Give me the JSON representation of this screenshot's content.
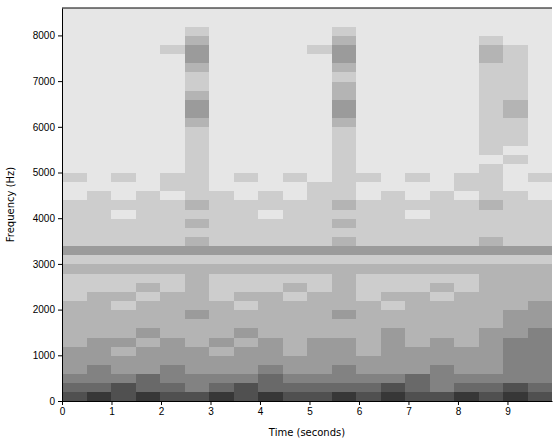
{
  "chart_data": {
    "type": "heatmap",
    "xlabel": "Time (seconds)",
    "ylabel": "Frequency (Hz)",
    "xlim": [
      0,
      9.9
    ],
    "ylim": [
      0,
      8600
    ],
    "xticks": [
      0,
      1,
      2,
      3,
      4,
      5,
      6,
      7,
      8,
      9
    ],
    "yticks": [
      0,
      1000,
      2000,
      3000,
      4000,
      5000,
      6000,
      7000,
      8000
    ],
    "x_edges": [
      0,
      0.495,
      0.99,
      1.485,
      1.98,
      2.475,
      2.97,
      3.465,
      3.96,
      4.455,
      4.95,
      5.445,
      5.94,
      6.435,
      6.93,
      7.425,
      7.92,
      8.415,
      8.91,
      9.405,
      9.9
    ],
    "y_edges": [
      0,
      200,
      400,
      600,
      800,
      1000,
      1200,
      1400,
      1600,
      1800,
      2000,
      2200,
      2400,
      2600,
      2800,
      3000,
      3200,
      3400,
      3600,
      3800,
      4000,
      4200,
      4400,
      4600,
      4800,
      5000,
      5200,
      5400,
      5600,
      5800,
      6000,
      6200,
      6400,
      6600,
      6800,
      7000,
      7200,
      7400,
      7600,
      7800,
      8000,
      8200,
      8400,
      8600
    ],
    "clim": [
      0,
      9
    ],
    "cells": [
      [
        7,
        8,
        7,
        8,
        7,
        7,
        8,
        7,
        8,
        7,
        7,
        8,
        7,
        8,
        7,
        7,
        8,
        7,
        8,
        7
      ],
      [
        6,
        6,
        7,
        6,
        6,
        5,
        6,
        7,
        6,
        6,
        6,
        6,
        6,
        7,
        6,
        5,
        6,
        6,
        7,
        6
      ],
      [
        5,
        5,
        5,
        6,
        5,
        5,
        5,
        5,
        6,
        5,
        5,
        5,
        5,
        5,
        6,
        5,
        5,
        5,
        5,
        5
      ],
      [
        4,
        5,
        4,
        4,
        5,
        4,
        4,
        4,
        5,
        4,
        4,
        5,
        4,
        4,
        4,
        5,
        4,
        4,
        5,
        5
      ],
      [
        4,
        4,
        4,
        4,
        4,
        4,
        4,
        4,
        4,
        4,
        4,
        4,
        4,
        4,
        4,
        4,
        4,
        4,
        5,
        5
      ],
      [
        4,
        4,
        3,
        4,
        4,
        4,
        3,
        4,
        4,
        3,
        4,
        4,
        3,
        4,
        4,
        4,
        4,
        4,
        5,
        5
      ],
      [
        3,
        4,
        4,
        3,
        4,
        3,
        4,
        3,
        4,
        3,
        4,
        4,
        3,
        4,
        3,
        4,
        3,
        4,
        5,
        5
      ],
      [
        3,
        3,
        3,
        4,
        3,
        3,
        3,
        4,
        3,
        3,
        3,
        3,
        3,
        4,
        3,
        3,
        3,
        4,
        4,
        5
      ],
      [
        3,
        3,
        3,
        3,
        3,
        3,
        3,
        3,
        3,
        3,
        3,
        3,
        3,
        3,
        3,
        3,
        3,
        3,
        4,
        4
      ],
      [
        3,
        3,
        3,
        3,
        3,
        4,
        3,
        3,
        3,
        3,
        3,
        4,
        3,
        3,
        3,
        3,
        3,
        3,
        4,
        4
      ],
      [
        3,
        3,
        2,
        3,
        3,
        3,
        3,
        2,
        3,
        3,
        3,
        3,
        3,
        2,
        3,
        3,
        3,
        3,
        3,
        4
      ],
      [
        2,
        3,
        3,
        2,
        3,
        3,
        2,
        3,
        3,
        2,
        3,
        3,
        2,
        3,
        3,
        2,
        3,
        3,
        3,
        3
      ],
      [
        2,
        2,
        2,
        3,
        2,
        3,
        2,
        2,
        2,
        3,
        2,
        3,
        2,
        2,
        2,
        3,
        2,
        3,
        3,
        3
      ],
      [
        2,
        2,
        2,
        2,
        2,
        3,
        2,
        2,
        2,
        2,
        2,
        3,
        2,
        2,
        2,
        2,
        2,
        3,
        3,
        3
      ],
      [
        3,
        3,
        3,
        3,
        3,
        3,
        3,
        3,
        3,
        3,
        3,
        3,
        3,
        3,
        3,
        3,
        3,
        3,
        3,
        3
      ],
      [
        2,
        2,
        2,
        2,
        2,
        2,
        2,
        2,
        2,
        2,
        2,
        2,
        2,
        2,
        2,
        2,
        2,
        2,
        2,
        2
      ],
      [
        4,
        4,
        4,
        4,
        4,
        4,
        4,
        4,
        4,
        4,
        4,
        4,
        4,
        4,
        4,
        4,
        4,
        4,
        4,
        4
      ],
      [
        2,
        2,
        2,
        2,
        2,
        3,
        2,
        2,
        2,
        2,
        2,
        3,
        2,
        2,
        2,
        2,
        2,
        3,
        2,
        2
      ],
      [
        2,
        2,
        2,
        2,
        2,
        2,
        2,
        2,
        2,
        2,
        2,
        2,
        2,
        2,
        2,
        2,
        2,
        2,
        2,
        2
      ],
      [
        2,
        2,
        2,
        2,
        2,
        3,
        2,
        2,
        2,
        2,
        2,
        3,
        2,
        2,
        2,
        2,
        2,
        2,
        2,
        2
      ],
      [
        2,
        2,
        1,
        2,
        2,
        2,
        2,
        2,
        1,
        2,
        2,
        2,
        2,
        2,
        1,
        2,
        2,
        2,
        2,
        2
      ],
      [
        2,
        2,
        2,
        2,
        2,
        3,
        2,
        2,
        2,
        2,
        2,
        3,
        2,
        2,
        2,
        2,
        2,
        3,
        2,
        2
      ],
      [
        1,
        2,
        1,
        2,
        1,
        2,
        2,
        1,
        2,
        1,
        2,
        2,
        1,
        2,
        1,
        2,
        1,
        2,
        2,
        1
      ],
      [
        1,
        1,
        1,
        1,
        2,
        2,
        1,
        1,
        1,
        1,
        2,
        2,
        1,
        1,
        1,
        1,
        2,
        2,
        1,
        1
      ],
      [
        2,
        1,
        2,
        1,
        2,
        2,
        1,
        2,
        1,
        2,
        1,
        2,
        2,
        1,
        2,
        1,
        2,
        2,
        1,
        2
      ],
      [
        1,
        1,
        1,
        1,
        1,
        2,
        1,
        1,
        1,
        1,
        1,
        2,
        1,
        1,
        1,
        1,
        1,
        2,
        1,
        1
      ],
      [
        1,
        1,
        1,
        1,
        1,
        2,
        1,
        1,
        1,
        1,
        1,
        2,
        1,
        1,
        1,
        1,
        1,
        1,
        2,
        1
      ],
      [
        1,
        1,
        1,
        1,
        1,
        2,
        1,
        1,
        1,
        1,
        1,
        2,
        1,
        1,
        1,
        1,
        1,
        2,
        1,
        1
      ],
      [
        1,
        1,
        1,
        1,
        1,
        2,
        1,
        1,
        1,
        1,
        1,
        2,
        1,
        1,
        1,
        1,
        1,
        2,
        2,
        1
      ],
      [
        1,
        1,
        1,
        1,
        1,
        2,
        1,
        1,
        1,
        1,
        1,
        2,
        1,
        1,
        1,
        1,
        1,
        2,
        2,
        1
      ],
      [
        1,
        1,
        1,
        1,
        1,
        3,
        1,
        1,
        1,
        1,
        1,
        3,
        1,
        1,
        1,
        1,
        1,
        2,
        2,
        1
      ],
      [
        1,
        1,
        1,
        1,
        1,
        4,
        1,
        1,
        1,
        1,
        1,
        4,
        1,
        1,
        1,
        1,
        1,
        2,
        3,
        1
      ],
      [
        1,
        1,
        1,
        1,
        1,
        4,
        1,
        1,
        1,
        1,
        1,
        4,
        1,
        1,
        1,
        1,
        1,
        2,
        3,
        1
      ],
      [
        1,
        1,
        1,
        1,
        1,
        3,
        1,
        1,
        1,
        1,
        1,
        3,
        1,
        1,
        1,
        1,
        1,
        2,
        2,
        1
      ],
      [
        1,
        1,
        1,
        1,
        1,
        2,
        1,
        1,
        1,
        1,
        1,
        3,
        1,
        1,
        1,
        1,
        1,
        2,
        2,
        1
      ],
      [
        1,
        1,
        1,
        1,
        1,
        2,
        1,
        1,
        1,
        1,
        1,
        2,
        1,
        1,
        1,
        1,
        1,
        2,
        2,
        1
      ],
      [
        1,
        1,
        1,
        1,
        1,
        3,
        1,
        1,
        1,
        1,
        1,
        3,
        1,
        1,
        1,
        1,
        1,
        2,
        2,
        1
      ],
      [
        1,
        1,
        1,
        1,
        1,
        4,
        1,
        1,
        1,
        1,
        1,
        4,
        1,
        1,
        1,
        1,
        1,
        3,
        2,
        1
      ],
      [
        1,
        1,
        1,
        1,
        2,
        4,
        1,
        1,
        1,
        1,
        2,
        4,
        1,
        1,
        1,
        1,
        1,
        3,
        2,
        1
      ],
      [
        1,
        1,
        1,
        1,
        1,
        3,
        1,
        1,
        1,
        1,
        1,
        3,
        1,
        1,
        1,
        1,
        1,
        2,
        1,
        1
      ],
      [
        1,
        1,
        1,
        1,
        1,
        2,
        1,
        1,
        1,
        1,
        1,
        2,
        1,
        1,
        1,
        1,
        1,
        1,
        1,
        1
      ],
      [
        1,
        1,
        1,
        1,
        1,
        1,
        1,
        1,
        1,
        1,
        1,
        1,
        1,
        1,
        1,
        1,
        1,
        1,
        1,
        1
      ],
      [
        1,
        1,
        1,
        1,
        1,
        1,
        1,
        1,
        1,
        1,
        1,
        1,
        1,
        1,
        1,
        1,
        1,
        1,
        1,
        1
      ]
    ]
  }
}
